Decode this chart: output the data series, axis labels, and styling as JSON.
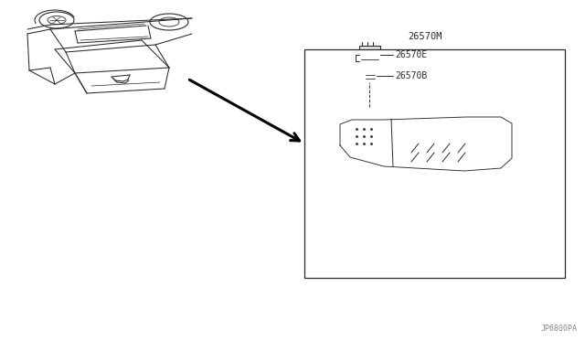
{
  "bg_color": "#ffffff",
  "line_color": "#2a2a2a",
  "label_color": "#2a2a2a",
  "part_label_26570M": "26570M",
  "part_label_26570B": "26570B",
  "part_label_26570E": "26570E",
  "diagram_id": "JP6800PA",
  "figsize": [
    6.4,
    3.72
  ],
  "dpi": 100
}
